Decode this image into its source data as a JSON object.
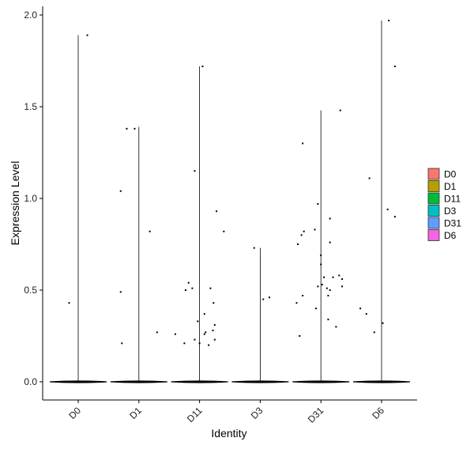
{
  "chart_data": {
    "type": "scatter",
    "subtype": "violin",
    "title": "",
    "xlabel": "Identity",
    "ylabel": "Expression Level",
    "categories": [
      "D0",
      "D1",
      "D11",
      "D3",
      "D31",
      "D6"
    ],
    "ylim": [
      -0.1,
      2.05
    ],
    "yticks": [
      0.0,
      0.5,
      1.0,
      1.5,
      2.0
    ],
    "ytick_labels": [
      "0.0",
      "0.5",
      "1.0",
      "1.5",
      "2.0"
    ],
    "grid": false,
    "legend": {
      "position": "right",
      "entries": [
        {
          "name": "D0",
          "color": "#F8766D"
        },
        {
          "name": "D1",
          "color": "#B79F00"
        },
        {
          "name": "D11",
          "color": "#00BA38"
        },
        {
          "name": "D3",
          "color": "#00BFC4"
        },
        {
          "name": "D31",
          "color": "#619CFF"
        },
        {
          "name": "D6",
          "color": "#F564E3"
        }
      ]
    },
    "violin_max": [
      1.89,
      1.39,
      1.72,
      0.73,
      1.48,
      1.97
    ],
    "series": [
      {
        "category": "D0",
        "points": [
          [
            -0.15,
            0.43
          ],
          [
            0.15,
            1.89
          ]
        ]
      },
      {
        "category": "D1",
        "points": [
          [
            -0.3,
            1.04
          ],
          [
            -0.3,
            0.49
          ],
          [
            -0.28,
            0.21
          ],
          [
            -0.2,
            1.38
          ],
          [
            -0.07,
            1.38
          ],
          [
            0.18,
            0.82
          ],
          [
            0.3,
            0.27
          ]
        ]
      },
      {
        "category": "D11",
        "points": [
          [
            -0.4,
            0.26
          ],
          [
            -0.25,
            0.21
          ],
          [
            -0.23,
            0.5
          ],
          [
            -0.18,
            0.54
          ],
          [
            -0.12,
            0.51
          ],
          [
            -0.08,
            1.15
          ],
          [
            -0.08,
            0.23
          ],
          [
            -0.03,
            0.33
          ],
          [
            0.0,
            0.21
          ],
          [
            0.05,
            1.72
          ],
          [
            0.08,
            0.37
          ],
          [
            0.08,
            0.26
          ],
          [
            0.1,
            0.27
          ],
          [
            0.15,
            0.2
          ],
          [
            0.18,
            0.51
          ],
          [
            0.22,
            0.28
          ],
          [
            0.23,
            0.43
          ],
          [
            0.25,
            0.23
          ],
          [
            0.25,
            0.31
          ],
          [
            0.28,
            0.93
          ],
          [
            0.4,
            0.82
          ]
        ]
      },
      {
        "category": "D3",
        "points": [
          [
            -0.1,
            0.73
          ],
          [
            0.05,
            0.45
          ],
          [
            0.15,
            0.46
          ]
        ]
      },
      {
        "category": "D31",
        "points": [
          [
            -0.4,
            0.43
          ],
          [
            -0.38,
            0.75
          ],
          [
            -0.35,
            0.25
          ],
          [
            -0.32,
            0.8
          ],
          [
            -0.3,
            1.3
          ],
          [
            -0.3,
            0.47
          ],
          [
            -0.28,
            0.82
          ],
          [
            -0.1,
            0.83
          ],
          [
            -0.08,
            0.4
          ],
          [
            -0.05,
            0.97
          ],
          [
            -0.05,
            0.52
          ],
          [
            0.0,
            0.69
          ],
          [
            0.0,
            0.64
          ],
          [
            0.02,
            0.53
          ],
          [
            0.05,
            0.57
          ],
          [
            0.1,
            0.51
          ],
          [
            0.12,
            0.34
          ],
          [
            0.12,
            0.47
          ],
          [
            0.15,
            0.89
          ],
          [
            0.15,
            0.5
          ],
          [
            0.15,
            0.76
          ],
          [
            0.2,
            0.57
          ],
          [
            0.25,
            0.3
          ],
          [
            0.3,
            0.58
          ],
          [
            0.32,
            1.48
          ],
          [
            0.35,
            0.52
          ],
          [
            0.35,
            0.56
          ]
        ]
      },
      {
        "category": "D6",
        "points": [
          [
            -0.35,
            0.4
          ],
          [
            -0.25,
            0.37
          ],
          [
            -0.2,
            1.11
          ],
          [
            -0.12,
            0.27
          ],
          [
            0.02,
            0.32
          ],
          [
            0.1,
            0.94
          ],
          [
            0.12,
            1.97
          ],
          [
            0.22,
            0.9
          ],
          [
            0.22,
            1.72
          ]
        ]
      }
    ]
  }
}
